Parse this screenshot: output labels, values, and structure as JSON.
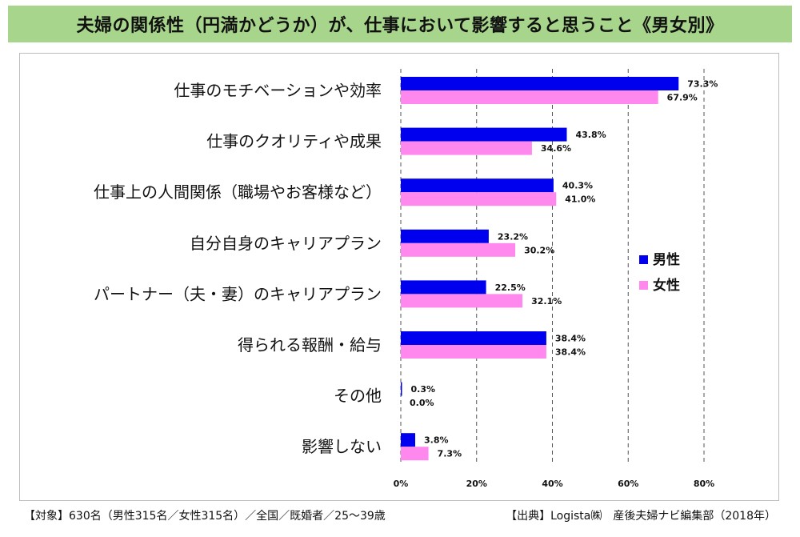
{
  "title": "夫婦の関係性（円満かどうか）が、仕事において影響すると思うこと《男女別》",
  "footer": {
    "left": "【対象】630名（男性315名／女性315名）／全国／既婚者／25～39歳",
    "right": "【出典】Logista㈱　産後夫婦ナビ編集部（2018年）"
  },
  "chart_data": {
    "type": "bar",
    "orientation": "horizontal",
    "categories": [
      "仕事のモチベーションや効率",
      "仕事のクオリティや成果",
      "仕事上の人間関係（職場やお客様など）",
      "自分自身のキャリアプラン",
      "パートナー（夫・妻）のキャリアプラン",
      "得られる報酬・給与",
      "その他",
      "影響しない"
    ],
    "series": [
      {
        "name": "男性",
        "color": "#0000ee",
        "values": [
          73.3,
          43.8,
          40.3,
          23.2,
          22.5,
          38.4,
          0.3,
          3.8
        ],
        "labels": [
          "73.3%",
          "43.8%",
          "40.3%",
          "23.2%",
          "22.5%",
          "38.4%",
          "0.3%",
          "3.8%"
        ]
      },
      {
        "name": "女性",
        "color": "#ff88ee",
        "values": [
          67.9,
          34.6,
          41.0,
          30.2,
          32.1,
          38.4,
          0.0,
          7.3
        ],
        "labels": [
          "67.9%",
          "34.6%",
          "41.0%",
          "30.2%",
          "32.1%",
          "38.4%",
          "0.0%",
          "7.3%"
        ]
      }
    ],
    "xlim": [
      0,
      80
    ],
    "xticks": [
      0,
      20,
      40,
      60,
      80
    ],
    "xtick_labels": [
      "0%",
      "20%",
      "40%",
      "60%",
      "80%"
    ],
    "grid": true,
    "legend": "right"
  }
}
